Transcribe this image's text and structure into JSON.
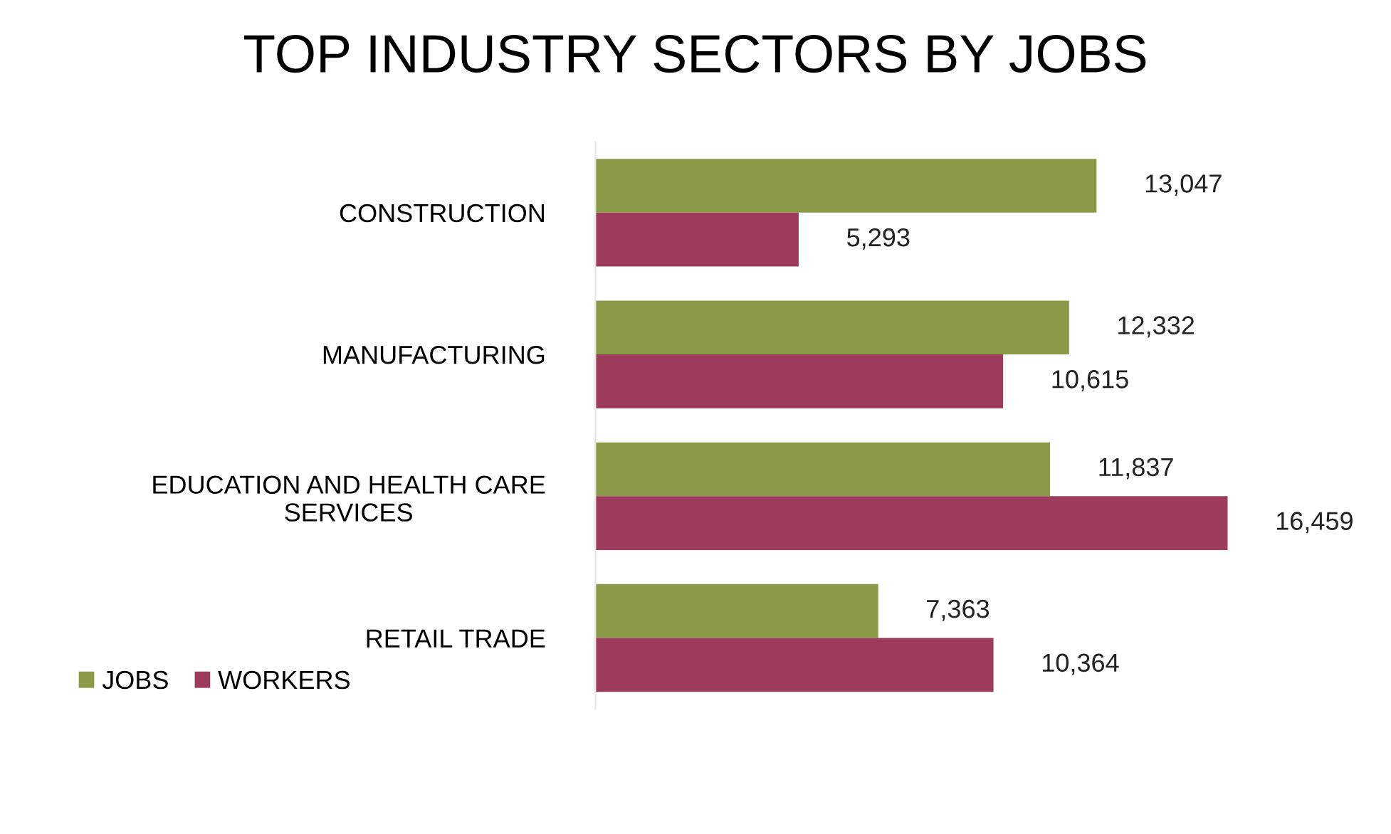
{
  "chart_data": {
    "type": "bar",
    "orientation": "horizontal",
    "title": "TOP INDUSTRY SECTORS BY JOBS",
    "categories": [
      "CONSTRUCTION",
      "MANUFACTURING",
      "EDUCATION AND HEALTH CARE\nSERVICES",
      "RETAIL TRADE"
    ],
    "series": [
      {
        "name": "JOBS",
        "color": "#8b9a46",
        "values": [
          13047,
          12332,
          11837,
          7363
        ],
        "value_labels": [
          "13,047",
          "12,332",
          "11,837",
          "7,363"
        ]
      },
      {
        "name": "WORKERS",
        "color": "#9c3b5c",
        "values": [
          5293,
          10615,
          16459,
          10364
        ],
        "value_labels": [
          "5,293",
          "10,615",
          "16,459",
          "10,364"
        ]
      }
    ],
    "legend": "bottom left",
    "grid": false
  }
}
